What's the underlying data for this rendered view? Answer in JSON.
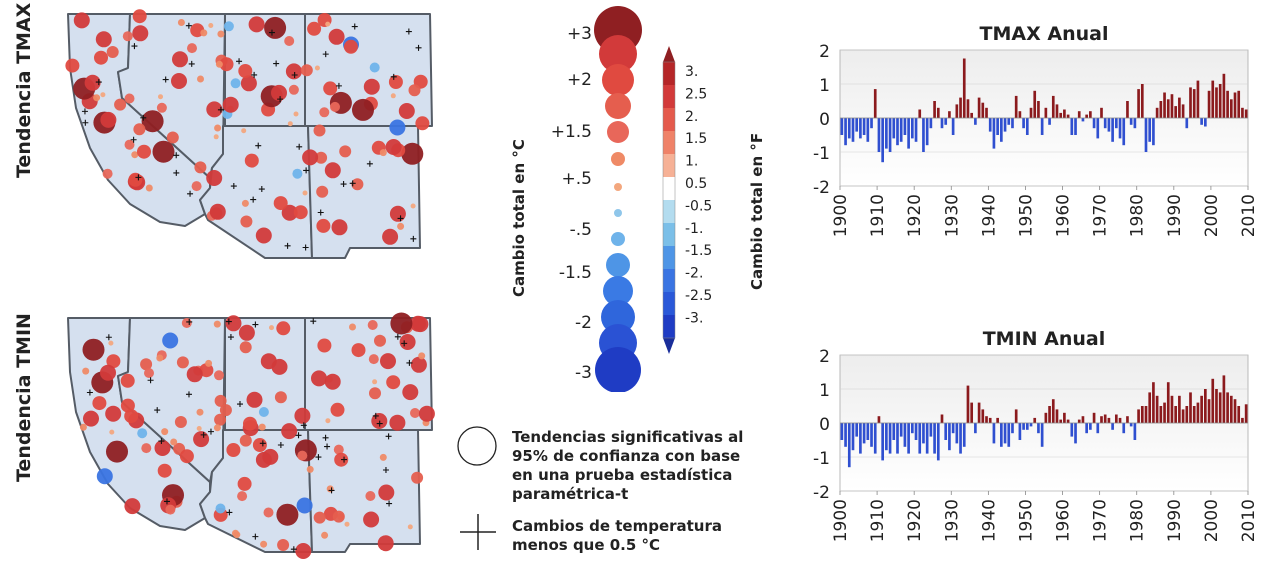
{
  "row_labels": {
    "tmax": "Tendencia TMAX",
    "tmin": "Tendencia TMIN"
  },
  "legend": {
    "celsius_title": "Cambio total en °C",
    "fahrenheit_title": "Cambio total en °F",
    "celsius_labels": [
      "+3",
      "+2",
      "+1.5",
      "+.5",
      "-.5",
      "-1.5",
      "-2",
      "-3"
    ],
    "fahrenheit_labels": [
      "3.",
      "2.5",
      "2.",
      "1.5",
      "1.",
      "0.5",
      "-0.5",
      "-1.",
      "-1.5",
      "-2.",
      "-2.5",
      "-3."
    ],
    "fahrenheit_colors": [
      "#b52628",
      "#d23a3a",
      "#e45a4c",
      "#ef8268",
      "#f6b196",
      "#ffffff",
      "#b3dcef",
      "#7bbfe8",
      "#4e95e6",
      "#3a74e2",
      "#2a58d8",
      "#1f3cc4"
    ],
    "significant_text": "Tendencias significativas al 95% de confianza con base en una prueba estadística paramétrica-t",
    "plus_text": "Cambios de temperatura menos que 0.5 °C"
  },
  "chart_data": [
    {
      "type": "bar",
      "title": "TMAX Anual",
      "xlabel": "",
      "ylabel": "",
      "ylim": [
        -2,
        2
      ],
      "yticks": [
        2,
        1,
        0,
        -1,
        -2
      ],
      "xticks": [
        1900,
        1910,
        1920,
        1930,
        1940,
        1950,
        1960,
        1970,
        1980,
        1990,
        2000,
        2010
      ],
      "x": [
        1900,
        1901,
        1902,
        1903,
        1904,
        1905,
        1906,
        1907,
        1908,
        1909,
        1910,
        1911,
        1912,
        1913,
        1914,
        1915,
        1916,
        1917,
        1918,
        1919,
        1920,
        1921,
        1922,
        1923,
        1924,
        1925,
        1926,
        1927,
        1928,
        1929,
        1930,
        1931,
        1932,
        1933,
        1934,
        1935,
        1936,
        1937,
        1938,
        1939,
        1940,
        1941,
        1942,
        1943,
        1944,
        1945,
        1946,
        1947,
        1948,
        1949,
        1950,
        1951,
        1952,
        1953,
        1954,
        1955,
        1956,
        1957,
        1958,
        1959,
        1960,
        1961,
        1962,
        1963,
        1964,
        1965,
        1966,
        1967,
        1968,
        1969,
        1970,
        1971,
        1972,
        1973,
        1974,
        1975,
        1976,
        1977,
        1978,
        1979,
        1980,
        1981,
        1982,
        1983,
        1984,
        1985,
        1986,
        1987,
        1988,
        1989,
        1990,
        1991,
        1992,
        1993,
        1994,
        1995,
        1996,
        1997,
        1998,
        1999,
        2000,
        2001,
        2002,
        2003,
        2004,
        2005,
        2006,
        2007,
        2008,
        2009
      ],
      "values": [
        -0.5,
        -0.8,
        -0.6,
        -0.7,
        -0.4,
        -0.6,
        -0.5,
        -0.7,
        -0.3,
        0.85,
        -1.0,
        -1.3,
        -0.9,
        -1.0,
        -0.6,
        -0.8,
        -0.7,
        -0.5,
        -0.9,
        -0.6,
        -0.7,
        0.25,
        -1.0,
        -0.8,
        -0.3,
        0.5,
        0.3,
        -0.3,
        -0.2,
        0.2,
        -0.5,
        0.4,
        0.6,
        1.75,
        0.55,
        0.15,
        -0.2,
        0.6,
        0.45,
        0.3,
        -0.4,
        -0.9,
        -0.5,
        -0.7,
        -0.4,
        -0.2,
        -0.3,
        0.65,
        0.2,
        -0.3,
        -0.5,
        0.3,
        0.8,
        0.5,
        -0.5,
        0.3,
        -0.2,
        0.65,
        0.4,
        0.15,
        0.25,
        0.1,
        -0.5,
        -0.5,
        0.2,
        -0.1,
        0.1,
        0.2,
        -0.3,
        -0.6,
        0.3,
        -0.3,
        -0.4,
        -0.7,
        -0.3,
        -0.6,
        -0.8,
        0.5,
        -0.2,
        -0.3,
        0.85,
        1.0,
        -1.0,
        -0.7,
        -0.8,
        0.3,
        0.5,
        0.75,
        0.55,
        0.7,
        0.35,
        0.6,
        0.4,
        -0.3,
        0.9,
        0.85,
        1.1,
        -0.2,
        -0.25,
        0.8,
        1.1,
        0.9,
        1.0,
        1.3,
        0.8,
        0.55,
        0.75,
        0.8,
        0.3,
        0.25
      ]
    },
    {
      "type": "bar",
      "title": "TMIN Anual",
      "xlabel": "",
      "ylabel": "",
      "ylim": [
        -2,
        2
      ],
      "yticks": [
        2,
        1,
        0,
        -1,
        -2
      ],
      "xticks": [
        1900,
        1910,
        1920,
        1930,
        1940,
        1950,
        1960,
        1970,
        1980,
        1990,
        2000,
        2010
      ],
      "x": [
        1900,
        1901,
        1902,
        1903,
        1904,
        1905,
        1906,
        1907,
        1908,
        1909,
        1910,
        1911,
        1912,
        1913,
        1914,
        1915,
        1916,
        1917,
        1918,
        1919,
        1920,
        1921,
        1922,
        1923,
        1924,
        1925,
        1926,
        1927,
        1928,
        1929,
        1930,
        1931,
        1932,
        1933,
        1934,
        1935,
        1936,
        1937,
        1938,
        1939,
        1940,
        1941,
        1942,
        1943,
        1944,
        1945,
        1946,
        1947,
        1948,
        1949,
        1950,
        1951,
        1952,
        1953,
        1954,
        1955,
        1956,
        1957,
        1958,
        1959,
        1960,
        1961,
        1962,
        1963,
        1964,
        1965,
        1966,
        1967,
        1968,
        1969,
        1970,
        1971,
        1972,
        1973,
        1974,
        1975,
        1976,
        1977,
        1978,
        1979,
        1980,
        1981,
        1982,
        1983,
        1984,
        1985,
        1986,
        1987,
        1988,
        1989,
        1990,
        1991,
        1992,
        1993,
        1994,
        1995,
        1996,
        1997,
        1998,
        1999,
        2000,
        2001,
        2002,
        2003,
        2004,
        2005,
        2006,
        2007,
        2008,
        2009
      ],
      "values": [
        -0.5,
        -0.7,
        -1.3,
        -0.8,
        -0.4,
        -0.9,
        -0.6,
        -0.5,
        -0.7,
        -0.9,
        0.2,
        -1.1,
        -0.8,
        -0.9,
        -0.5,
        -0.9,
        -0.4,
        -0.7,
        -0.9,
        -0.3,
        -0.5,
        -0.9,
        -0.6,
        -0.9,
        -0.4,
        -0.9,
        -1.1,
        0.25,
        -0.5,
        -0.8,
        -0.3,
        -0.6,
        -0.9,
        -0.7,
        1.1,
        0.6,
        -0.3,
        0.6,
        0.4,
        0.2,
        0.15,
        -0.6,
        0.15,
        -0.7,
        -0.6,
        -0.7,
        -0.3,
        0.4,
        -0.5,
        -0.2,
        -0.2,
        -0.1,
        0.15,
        -0.3,
        -0.7,
        0.3,
        0.5,
        0.7,
        0.4,
        0.1,
        0.3,
        0.1,
        -0.4,
        -0.6,
        0.1,
        0.2,
        -0.3,
        -0.2,
        0.3,
        -0.3,
        0.2,
        0.25,
        0.15,
        -0.2,
        0.25,
        0.15,
        -0.3,
        0.2,
        -0.1,
        -0.5,
        0.4,
        0.5,
        0.5,
        0.9,
        1.2,
        0.8,
        0.5,
        0.6,
        1.2,
        0.8,
        0.5,
        0.8,
        0.4,
        0.5,
        0.9,
        0.5,
        0.6,
        0.8,
        1.0,
        0.7,
        1.3,
        1.0,
        0.9,
        1.4,
        0.9,
        0.8,
        0.7,
        0.5,
        0.15,
        0.55
      ]
    }
  ]
}
